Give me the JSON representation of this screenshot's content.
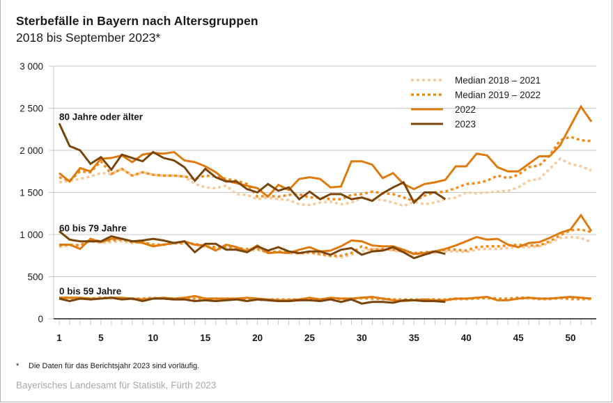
{
  "header": {
    "title": "Sterbefälle in Bayern nach Altersgruppen",
    "subtitle": "2018 bis September 2023*"
  },
  "footnote": {
    "marker": "*",
    "text": "Die Daten für das Berichtsjahr 2023 sind vorläufig."
  },
  "source": "Bayerisches Landesamt für Statistik, Fürth 2023",
  "colors": {
    "median_2018_2021": "#fac99a",
    "median_2019_2022": "#ee8f1f",
    "y2022": "#df7b0e",
    "y2023": "#7a450b",
    "grid": "#c8c8c8",
    "axis": "#1a1a1a"
  },
  "chart_data": {
    "type": "line",
    "title": "Sterbefälle in Bayern nach Altersgruppen",
    "subtitle": "2018 bis September 2023*",
    "xlabel": "",
    "ylabel": "",
    "xlim": [
      1,
      52
    ],
    "ylim": [
      0,
      3000
    ],
    "yticks": [
      0,
      500,
      1000,
      1500,
      2000,
      2500,
      3000
    ],
    "ytick_labels": [
      "0",
      "500",
      "1 000",
      "1 500",
      "2 000",
      "2 500",
      "3 000"
    ],
    "xticks": [
      1,
      5,
      10,
      15,
      20,
      25,
      30,
      35,
      40,
      45,
      50
    ],
    "xtick_labels": [
      "1",
      "5",
      "10",
      "15",
      "20",
      "25",
      "30",
      "35",
      "40",
      "45",
      "50"
    ],
    "grid": true,
    "legend_position": "top-right",
    "legend": [
      {
        "key": "median_2018_2021",
        "label": "Median 2018 – 2021",
        "style": "dotted-light"
      },
      {
        "key": "median_2019_2022",
        "label": "Median 2019 – 2022",
        "style": "dotted"
      },
      {
        "key": "y2022",
        "label": "2022",
        "style": "solid"
      },
      {
        "key": "y2023",
        "label": "2023",
        "style": "solid-dark"
      }
    ],
    "groups": [
      {
        "label": "80 Jahre oder älter",
        "label_value": 2400,
        "series": [
          {
            "key": "median_2018_2021",
            "name": "Median 2018 – 2021",
            "values": [
              1620,
              1640,
              1660,
              1690,
              1730,
              1720,
              1780,
              1700,
              1740,
              1710,
              1700,
              1700,
              1690,
              1600,
              1560,
              1550,
              1580,
              1480,
              1470,
              1420,
              1440,
              1420,
              1410,
              1360,
              1350,
              1380,
              1390,
              1360,
              1380,
              1440,
              1420,
              1410,
              1380,
              1340,
              1390,
              1360,
              1380,
              1420,
              1440,
              1500,
              1490,
              1500,
              1510,
              1520,
              1560,
              1640,
              1660,
              1780,
              1900,
              1840,
              1810,
              1760
            ]
          },
          {
            "key": "median_2019_2022",
            "name": "Median 2019 – 2022",
            "values": [
              1680,
              1640,
              1750,
              1740,
              1870,
              1720,
              1780,
              1700,
              1740,
              1710,
              1700,
              1700,
              1690,
              1660,
              1700,
              1690,
              1660,
              1640,
              1600,
              1450,
              1460,
              1450,
              1470,
              1480,
              1440,
              1440,
              1420,
              1420,
              1470,
              1480,
              1510,
              1490,
              1480,
              1440,
              1400,
              1460,
              1500,
              1510,
              1550,
              1600,
              1610,
              1640,
              1700,
              1670,
              1710,
              1800,
              1820,
              1940,
              2120,
              2160,
              2120,
              2110
            ]
          },
          {
            "key": "y2022",
            "name": "2022",
            "values": [
              1730,
              1630,
              1790,
              1750,
              1900,
              1910,
              1940,
              1860,
              1950,
              1970,
              1960,
              1980,
              1880,
              1860,
              1810,
              1740,
              1640,
              1610,
              1580,
              1550,
              1450,
              1590,
              1530,
              1660,
              1680,
              1660,
              1560,
              1570,
              1870,
              1870,
              1830,
              1670,
              1730,
              1600,
              1540,
              1600,
              1620,
              1650,
              1810,
              1810,
              1960,
              1940,
              1800,
              1750,
              1750,
              1840,
              1930,
              1930,
              2060,
              2290,
              2520,
              2340
            ]
          },
          {
            "key": "y2023",
            "name": "2023",
            "values": [
              2320,
              2050,
              2000,
              1840,
              1920,
              1770,
              1950,
              1910,
              1870,
              1980,
              1910,
              1880,
              1800,
              1640,
              1780,
              1680,
              1630,
              1630,
              1540,
              1500,
              1600,
              1520,
              1560,
              1420,
              1510,
              1420,
              1480,
              1480,
              1420,
              1440,
              1400,
              1490,
              1560,
              1620,
              1380,
              1500,
              1500,
              1420
            ]
          }
        ]
      },
      {
        "label": "60 bis 79 Jahre",
        "label_value": 1080,
        "series": [
          {
            "key": "median_2018_2021",
            "name": "Median 2018 – 2021",
            "values": [
              850,
              870,
              880,
              920,
              900,
              910,
              920,
              900,
              910,
              880,
              880,
              890,
              890,
              880,
              850,
              840,
              830,
              820,
              800,
              820,
              780,
              790,
              780,
              770,
              780,
              760,
              740,
              730,
              760,
              800,
              830,
              820,
              810,
              790,
              760,
              770,
              780,
              800,
              800,
              790,
              820,
              830,
              830,
              840,
              850,
              850,
              860,
              900,
              960,
              970,
              960,
              910
            ]
          },
          {
            "key": "median_2019_2022",
            "name": "Median 2019 – 2022",
            "values": [
              870,
              880,
              870,
              940,
              920,
              930,
              940,
              910,
              910,
              880,
              880,
              900,
              900,
              890,
              860,
              850,
              850,
              840,
              830,
              830,
              790,
              800,
              790,
              780,
              790,
              770,
              750,
              750,
              780,
              860,
              820,
              830,
              820,
              800,
              780,
              790,
              800,
              820,
              820,
              810,
              850,
              860,
              860,
              870,
              880,
              870,
              870,
              920,
              990,
              1050,
              1060,
              1030
            ]
          },
          {
            "key": "y2022",
            "name": "2022",
            "values": [
              880,
              880,
              830,
              950,
              910,
              950,
              950,
              920,
              900,
              860,
              880,
              900,
              920,
              880,
              870,
              810,
              880,
              850,
              800,
              870,
              780,
              790,
              780,
              820,
              850,
              800,
              810,
              860,
              930,
              920,
              870,
              860,
              860,
              820,
              770,
              780,
              800,
              830,
              870,
              920,
              970,
              940,
              950,
              880,
              850,
              900,
              910,
              960,
              1020,
              1060,
              1230,
              1040
            ]
          },
          {
            "key": "y2023",
            "name": "2023",
            "values": [
              1040,
              940,
              920,
              920,
              920,
              980,
              950,
              920,
              930,
              950,
              930,
              900,
              920,
              790,
              890,
              890,
              820,
              820,
              790,
              860,
              810,
              850,
              800,
              780,
              800,
              800,
              760,
              820,
              840,
              760,
              800,
              810,
              850,
              790,
              720,
              760,
              800,
              770
            ]
          }
        ]
      },
      {
        "label": "0 bis 59 Jahre",
        "label_value": 330,
        "series": [
          {
            "key": "median_2018_2021",
            "name": "Median 2018 – 2021",
            "values": [
              240,
              240,
              240,
              240,
              250,
              240,
              240,
              230,
              240,
              240,
              240,
              230,
              240,
              230,
              230,
              240,
              230,
              240,
              230,
              220,
              230,
              230,
              220,
              220,
              230,
              220,
              230,
              230,
              240,
              240,
              240,
              230,
              230,
              230,
              230,
              230,
              220,
              220,
              230,
              230,
              240,
              240,
              230,
              230,
              240,
              240,
              230,
              230,
              240,
              230,
              230,
              230
            ]
          },
          {
            "key": "median_2019_2022",
            "name": "Median 2019 – 2022",
            "values": [
              250,
              250,
              240,
              240,
              250,
              250,
              240,
              240,
              240,
              250,
              240,
              240,
              240,
              240,
              240,
              240,
              240,
              240,
              240,
              230,
              230,
              230,
              230,
              230,
              240,
              230,
              240,
              240,
              240,
              250,
              240,
              240,
              230,
              230,
              230,
              230,
              230,
              230,
              240,
              240,
              240,
              250,
              240,
              240,
              250,
              250,
              240,
              240,
              250,
              240,
              240,
              240
            ]
          },
          {
            "key": "y2022",
            "name": "2022",
            "values": [
              250,
              250,
              250,
              240,
              240,
              250,
              250,
              240,
              230,
              240,
              250,
              240,
              250,
              270,
              240,
              240,
              240,
              240,
              250,
              240,
              230,
              220,
              220,
              230,
              250,
              230,
              250,
              240,
              240,
              250,
              260,
              240,
              220,
              210,
              220,
              230,
              220,
              220,
              240,
              240,
              250,
              260,
              220,
              220,
              240,
              250,
              240,
              240,
              250,
              260,
              250,
              240
            ]
          },
          {
            "key": "y2023",
            "name": "2023",
            "values": [
              240,
              210,
              240,
              230,
              240,
              250,
              230,
              240,
              210,
              240,
              240,
              230,
              230,
              210,
              220,
              210,
              220,
              230,
              210,
              230,
              220,
              210,
              210,
              220,
              220,
              210,
              230,
              200,
              230,
              180,
              200,
              200,
              190,
              220,
              220,
              210,
              210,
              200
            ]
          }
        ]
      }
    ]
  }
}
